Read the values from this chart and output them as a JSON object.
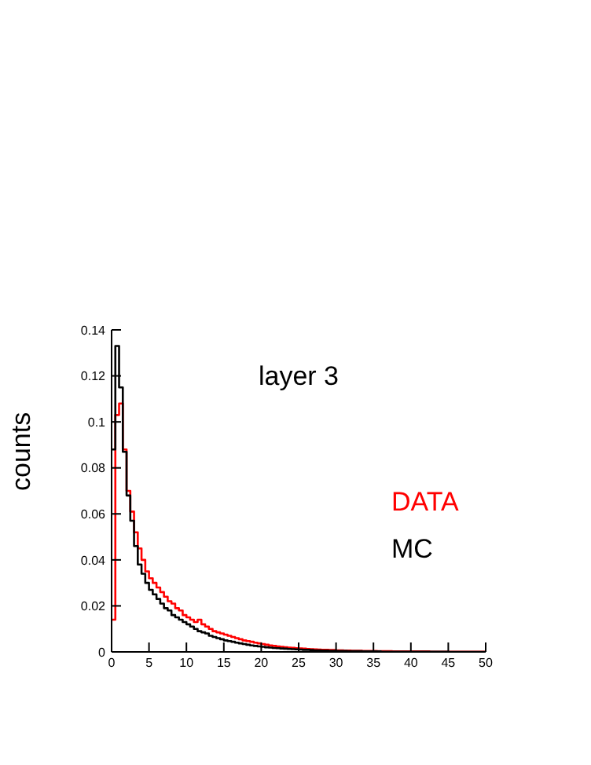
{
  "chart_data": {
    "type": "histogram",
    "title": "layer 3",
    "ylabel": "counts",
    "bins": [
      0,
      0.5,
      1,
      1.5,
      2,
      2.5,
      3,
      3.5,
      4,
      4.5,
      5,
      5.5,
      6,
      6.5,
      7,
      7.5,
      8,
      8.5,
      9,
      9.5,
      10,
      10.5,
      11,
      11.5,
      12,
      12.5,
      13,
      13.5,
      14,
      14.5,
      15,
      15.5,
      16,
      16.5,
      17,
      17.5,
      18,
      18.5,
      19,
      19.5,
      20,
      20.5,
      21,
      21.5,
      22,
      22.5,
      23,
      23.5,
      24,
      24.5,
      25,
      25.5,
      26,
      26.5,
      27,
      27.5,
      28,
      28.5,
      29,
      29.5,
      30,
      30.5,
      31,
      31.5,
      32,
      32.5,
      33,
      33.5,
      34,
      34.5,
      35,
      35.5,
      36,
      36.5,
      37,
      37.5,
      38,
      38.5,
      39,
      39.5,
      40,
      40.5,
      41,
      41.5,
      42,
      42.5,
      43,
      43.5,
      44,
      44.5,
      45,
      45.5,
      46,
      46.5,
      47,
      47.5,
      48,
      48.5,
      49,
      49.5,
      50
    ],
    "series": [
      {
        "name": "DATA",
        "color": "#ff0000",
        "values": [
          0.014,
          0.103,
          0.108,
          0.088,
          0.07,
          0.061,
          0.052,
          0.045,
          0.04,
          0.035,
          0.032,
          0.03,
          0.028,
          0.026,
          0.024,
          0.022,
          0.021,
          0.019,
          0.018,
          0.016,
          0.015,
          0.014,
          0.013,
          0.014,
          0.012,
          0.011,
          0.01,
          0.009,
          0.0085,
          0.008,
          0.0075,
          0.007,
          0.0065,
          0.006,
          0.0055,
          0.005,
          0.0047,
          0.0044,
          0.004,
          0.0037,
          0.0034,
          0.0031,
          0.0028,
          0.0026,
          0.0024,
          0.0022,
          0.002,
          0.0019,
          0.0018,
          0.0016,
          0.0015,
          0.0014,
          0.0013,
          0.0012,
          0.0011,
          0.001,
          0.0009,
          0.0009,
          0.0008,
          0.0008,
          0.0007,
          0.0007,
          0.0006,
          0.0006,
          0.0005,
          0.0005,
          0.0005,
          0.0004,
          0.0004,
          0.0004,
          0.0004,
          0.0003,
          0.0003,
          0.0003,
          0.0003,
          0.0002,
          0.0002,
          0.0002,
          0.0002,
          0.0002,
          0.0002,
          0.0002,
          0.0002,
          0.0002,
          0.0002,
          0.0001,
          0.0001,
          0.0001,
          0.0001,
          0.0001,
          0.0001,
          0.0001,
          0.0001,
          0.0001,
          0.0001,
          0.0001,
          0.0001,
          0.0001,
          0.0001,
          0.0001
        ]
      },
      {
        "name": "MC",
        "color": "#000000",
        "values": [
          0.088,
          0.133,
          0.115,
          0.087,
          0.068,
          0.057,
          0.046,
          0.038,
          0.034,
          0.03,
          0.027,
          0.025,
          0.023,
          0.021,
          0.019,
          0.018,
          0.016,
          0.015,
          0.014,
          0.013,
          0.012,
          0.011,
          0.01,
          0.009,
          0.0085,
          0.008,
          0.007,
          0.0065,
          0.006,
          0.0055,
          0.005,
          0.0047,
          0.0044,
          0.004,
          0.0037,
          0.0034,
          0.0031,
          0.0028,
          0.0026,
          0.0024,
          0.0022,
          0.002,
          0.0019,
          0.0017,
          0.0016,
          0.0015,
          0.0014,
          0.0013,
          0.0012,
          0.0011,
          0.001,
          0.0009,
          0.0009,
          0.0008,
          0.0007,
          0.0007,
          0.0006,
          0.0006,
          0.0005,
          0.0005,
          0.0004,
          0.0004,
          0.0004,
          0.0003,
          0.0003,
          0.0003,
          0.0003,
          0.0002,
          0.0002,
          0.0002,
          0.0002,
          0.0002,
          0.0001,
          0.0001,
          0.0001,
          0.0001,
          0.0001,
          0.0001,
          0.0001,
          0.0001,
          0.0001,
          0.0001,
          0.0001,
          0.0001,
          0.0001,
          0.0001,
          0.0001,
          0.0001,
          0.0001,
          0.0001,
          0,
          0,
          0,
          0,
          0,
          0,
          0,
          0,
          0,
          0
        ]
      }
    ],
    "xlim": [
      0,
      50
    ],
    "xticks": [
      0,
      5,
      10,
      15,
      20,
      25,
      30,
      35,
      40,
      45,
      50
    ],
    "ylim": [
      0,
      0.14
    ],
    "yticks": [
      0,
      0.02,
      0.04,
      0.06,
      0.08,
      0.1,
      0.12,
      0.14
    ],
    "legend": "right",
    "grid": false
  }
}
